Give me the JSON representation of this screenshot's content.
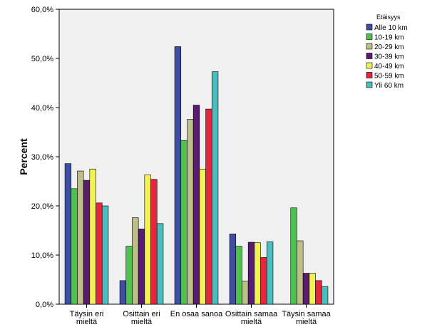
{
  "chart_data": {
    "type": "bar",
    "ylabel": "Percent",
    "ylim": [
      0,
      60
    ],
    "yticks": [
      "0,0%",
      "10,0%",
      "20,0%",
      "30,0%",
      "40,0%",
      "50,0%",
      "60,0%"
    ],
    "categories": [
      [
        "Täysin eri",
        "mieltä"
      ],
      [
        "Osittain eri",
        "mieltä"
      ],
      [
        "En osaa sanoa"
      ],
      [
        "Osittain samaa",
        "mieltä"
      ],
      [
        "Täysin samaa",
        "mieltä"
      ]
    ],
    "legend": {
      "title": "Etäisyys",
      "position": "right"
    },
    "series": [
      {
        "name": "Alle 10 km",
        "color": "#3e4fa3",
        "values": [
          28.6,
          4.8,
          52.4,
          14.3,
          0
        ]
      },
      {
        "name": "10-19 km",
        "color": "#4ec24e",
        "values": [
          23.5,
          11.8,
          33.3,
          11.8,
          19.6
        ]
      },
      {
        "name": "20-29 km",
        "color": "#bcbf8a",
        "values": [
          27.1,
          17.6,
          37.6,
          4.7,
          12.9
        ]
      },
      {
        "name": "30-39 km",
        "color": "#5a1c72",
        "values": [
          25.2,
          15.3,
          40.5,
          12.6,
          6.3
        ]
      },
      {
        "name": "40-49 km",
        "color": "#f2f255",
        "values": [
          27.5,
          26.3,
          27.5,
          12.5,
          6.3
        ]
      },
      {
        "name": "50-59 km",
        "color": "#e8253c",
        "values": [
          20.6,
          25.4,
          39.7,
          9.5,
          4.8
        ]
      },
      {
        "name": "Yli 60 km",
        "color": "#4bbfbf",
        "values": [
          20.0,
          16.4,
          47.3,
          12.7,
          3.6
        ]
      }
    ]
  }
}
